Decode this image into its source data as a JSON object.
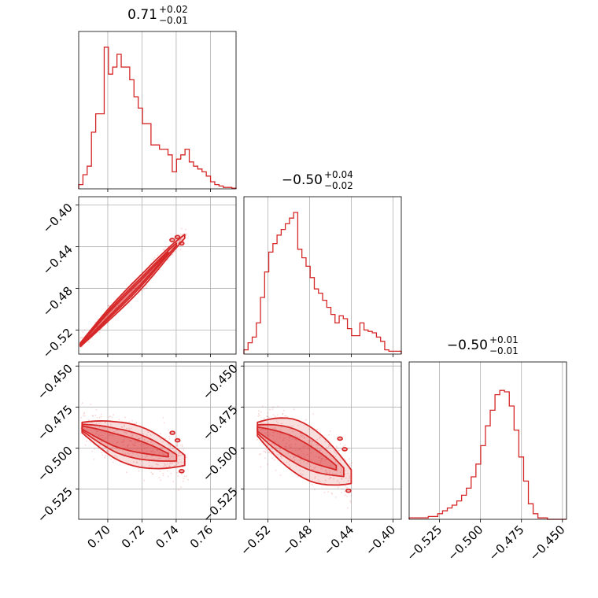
{
  "chart_data": {
    "type": "corner",
    "color": "#d62728",
    "panel_titles": [
      {
        "median": "0.71",
        "plus": "+0.02",
        "minus": "−0.01"
      },
      {
        "median": "−0.50",
        "plus": "+0.04",
        "minus": "−0.02"
      },
      {
        "median": "−0.50",
        "plus": "+0.01",
        "minus": "−0.01"
      }
    ],
    "params": [
      {
        "range": [
          0.683,
          0.775
        ],
        "ticks": [
          0.7,
          0.72,
          0.74,
          0.76
        ],
        "tick_labels": [
          "0.70",
          "0.72",
          "0.74",
          "0.76"
        ]
      },
      {
        "range": [
          -0.543,
          -0.392
        ],
        "ticks": [
          -0.52,
          -0.48,
          -0.44,
          -0.4
        ],
        "tick_labels": [
          "−0.52",
          "−0.48",
          "−0.44",
          "−0.40"
        ]
      },
      {
        "range": [
          -0.5435,
          -0.4475
        ],
        "ticks": [
          -0.525,
          -0.5,
          -0.475,
          -0.45
        ],
        "tick_labels": [
          "−0.525",
          "−0.500",
          "−0.475",
          "−0.450"
        ]
      }
    ],
    "hist1d": [
      {
        "param": 0,
        "values": [
          3,
          10,
          16,
          40,
          53,
          53,
          100,
          81,
          86,
          95,
          86,
          86,
          77,
          65,
          57,
          46,
          46,
          31,
          31,
          28,
          28,
          24,
          12,
          21,
          24,
          28,
          19,
          16,
          14,
          12,
          9,
          5,
          3,
          2,
          1,
          1,
          0.5
        ]
      },
      {
        "param": 1,
        "values": [
          3,
          8,
          12,
          22,
          40,
          58,
          72,
          78,
          84,
          88,
          92,
          96,
          100,
          74,
          68,
          62,
          54,
          46,
          43,
          38,
          33,
          28,
          22,
          27,
          25,
          18,
          13,
          13,
          22,
          17,
          16,
          15,
          12,
          9,
          3,
          2,
          2,
          2
        ]
      },
      {
        "param": 2,
        "values": [
          1,
          1,
          1,
          1,
          2,
          2,
          4,
          6,
          8,
          10,
          13,
          17,
          22,
          30,
          39,
          52,
          66,
          77,
          88,
          91,
          90,
          80,
          63,
          44,
          27,
          11,
          4,
          1,
          1,
          0,
          0,
          0,
          0
        ]
      }
    ],
    "pairs": [
      {
        "x": 0,
        "y": 1,
        "ridge": [
          [
            0.684,
            -0.534
          ],
          [
            0.7,
            -0.506
          ],
          [
            0.72,
            -0.473
          ],
          [
            0.738,
            -0.441
          ],
          [
            0.745,
            -0.43
          ]
        ],
        "spread": [
          0.0045,
          0.0065,
          0.005,
          0.0035
        ]
      },
      {
        "x": 0,
        "y": 2,
        "ridge": [
          [
            0.685,
            -0.4875
          ],
          [
            0.705,
            -0.4955
          ],
          [
            0.725,
            -0.501
          ],
          [
            0.745,
            -0.5075
          ]
        ],
        "spread": [
          0.007,
          0.009,
          0.01
        ]
      },
      {
        "x": 1,
        "y": 2,
        "ridge": [
          [
            -0.53,
            -0.4885
          ],
          [
            -0.495,
            -0.4985
          ],
          [
            -0.46,
            -0.51
          ],
          [
            -0.44,
            -0.5175
          ]
        ],
        "spread": [
          0.01,
          0.012,
          0.009
        ]
      }
    ],
    "grid": true
  }
}
